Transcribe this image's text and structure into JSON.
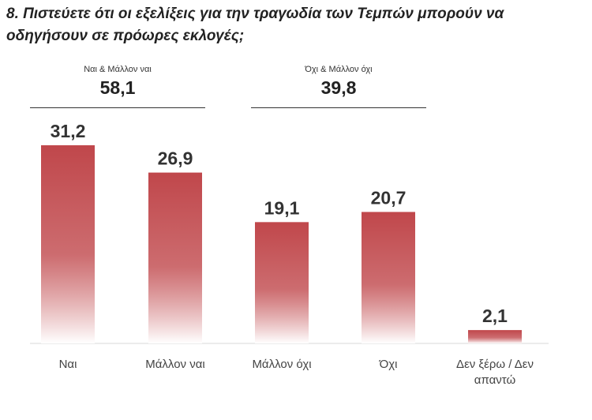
{
  "title": "8. Πιστεύετε ότι οι εξελίξεις για την τραγωδία των Τεμπών μπορούν να οδηγήσουν σε πρόωρες εκλογές;",
  "groups": [
    {
      "label": "Ναι & Μάλλον ναι",
      "total": "58,1"
    },
    {
      "label": "Όχι & Μάλλον όχι",
      "total": "39,8"
    }
  ],
  "colors": {
    "bar_top": "#c0474b",
    "bar_bottom": "#ffffff",
    "axis": "#d9d9d9"
  },
  "chart_data": {
    "type": "bar",
    "categories": [
      "Ναι",
      "Μάλλον ναι",
      "Μάλλον όχι",
      "Όχι",
      "Δεν ξέρω / Δεν απαντώ"
    ],
    "category_lines": [
      [
        "Ναι"
      ],
      [
        "Μάλλον ναι"
      ],
      [
        "Μάλλον όχι"
      ],
      [
        "Όχι"
      ],
      [
        "Δεν ξέρω / Δεν",
        "απαντώ"
      ]
    ],
    "values": [
      31.2,
      26.9,
      19.1,
      20.7,
      2.1
    ],
    "value_labels": [
      "31,2",
      "26,9",
      "19,1",
      "20,7",
      "2,1"
    ],
    "ylim": [
      0,
      31.2
    ],
    "grid": false
  }
}
